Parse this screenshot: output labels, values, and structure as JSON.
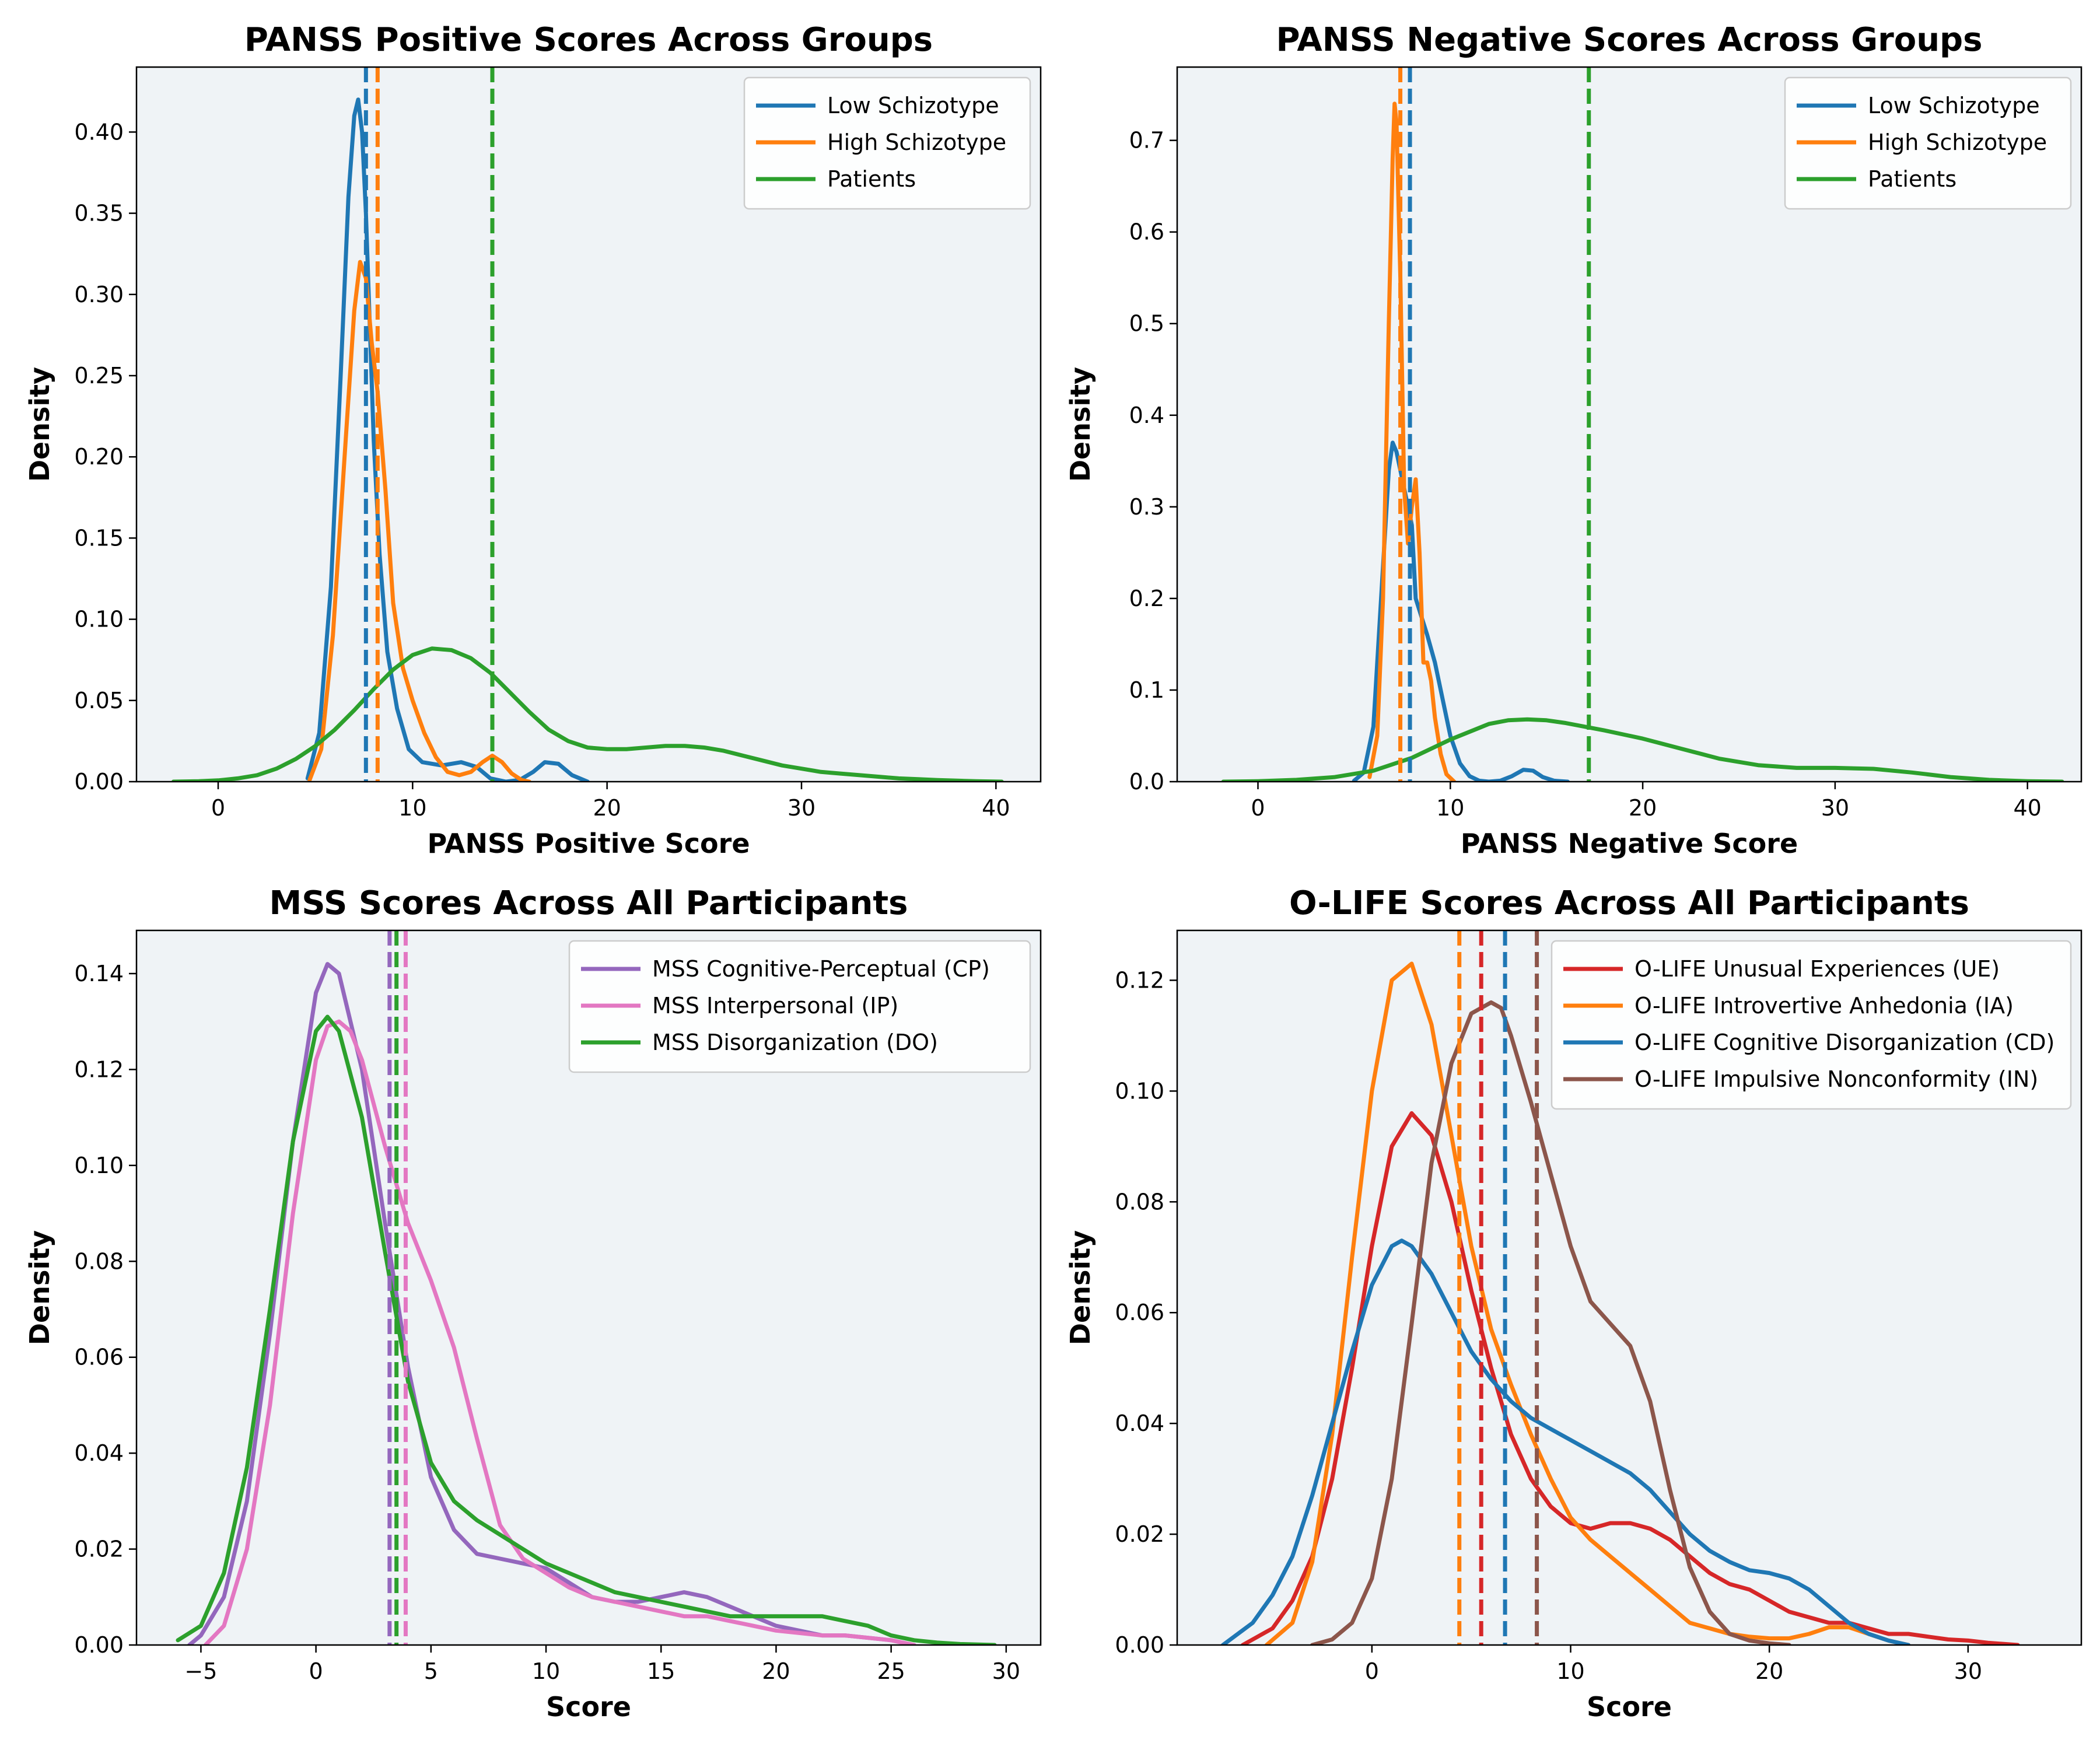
{
  "chart_data": [
    {
      "type": "line",
      "title": "PANSS Positive Scores Across Groups",
      "xlabel": "PANSS Positive Score",
      "ylabel": "Density",
      "xlim": [
        -4.2,
        42.3
      ],
      "ylim": [
        0,
        0.44
      ],
      "xticks": [
        0,
        10,
        20,
        30,
        40
      ],
      "yticks": [
        0.0,
        0.05,
        0.1,
        0.15,
        0.2,
        0.25,
        0.3,
        0.35,
        0.4
      ],
      "ytick_labels": [
        "0.00",
        "0.05",
        "0.10",
        "0.15",
        "0.20",
        "0.25",
        "0.30",
        "0.35",
        "0.40"
      ],
      "legend": "top-right",
      "series": [
        {
          "name": "Low Schizotype",
          "color": "#1f77b4",
          "mean": 7.6,
          "x": [
            4.6,
            5.2,
            5.8,
            6.3,
            6.7,
            7.0,
            7.2,
            7.4,
            7.6,
            7.8,
            8.0,
            8.3,
            8.7,
            9.2,
            9.8,
            10.5,
            11.5,
            12.5,
            13.3,
            14.0,
            14.8,
            15.5,
            16.2,
            16.8,
            17.5,
            18.2,
            19.0
          ],
          "y": [
            0.002,
            0.03,
            0.12,
            0.25,
            0.36,
            0.41,
            0.42,
            0.4,
            0.35,
            0.28,
            0.21,
            0.14,
            0.08,
            0.045,
            0.02,
            0.012,
            0.01,
            0.012,
            0.009,
            0.002,
            0.0,
            0.001,
            0.006,
            0.012,
            0.011,
            0.004,
            0.0
          ]
        },
        {
          "name": "High Schizotype",
          "color": "#ff7f0e",
          "mean": 8.2,
          "x": [
            4.7,
            5.3,
            5.9,
            6.5,
            7.0,
            7.3,
            7.6,
            7.9,
            8.2,
            8.6,
            9.0,
            9.5,
            10.0,
            10.6,
            11.2,
            11.8,
            12.4,
            13.0,
            13.6,
            14.1,
            14.6,
            15.1,
            15.6,
            16.0
          ],
          "y": [
            0.001,
            0.02,
            0.09,
            0.2,
            0.29,
            0.32,
            0.31,
            0.27,
            0.24,
            0.18,
            0.11,
            0.07,
            0.05,
            0.03,
            0.015,
            0.006,
            0.004,
            0.006,
            0.012,
            0.016,
            0.012,
            0.005,
            0.001,
            0.0
          ]
        },
        {
          "name": "Patients",
          "color": "#2ca02c",
          "mean": 14.1,
          "x": [
            -2.3,
            -1.0,
            0.0,
            1.0,
            2.0,
            3.0,
            4.0,
            5.0,
            6.0,
            7.0,
            8.0,
            9.0,
            10.0,
            11.0,
            12.0,
            13.0,
            14.0,
            15.0,
            16.0,
            17.0,
            18.0,
            19.0,
            20.0,
            21.0,
            22.0,
            23.0,
            24.0,
            25.0,
            26.0,
            27.0,
            28.0,
            29.0,
            30.0,
            31.0,
            32.0,
            33.0,
            34.0,
            35.0,
            36.0,
            37.0,
            38.0,
            39.0,
            40.3
          ],
          "y": [
            0.0,
            0.0003,
            0.0008,
            0.002,
            0.004,
            0.008,
            0.014,
            0.022,
            0.032,
            0.044,
            0.057,
            0.069,
            0.078,
            0.082,
            0.081,
            0.076,
            0.067,
            0.055,
            0.043,
            0.032,
            0.025,
            0.021,
            0.02,
            0.02,
            0.021,
            0.022,
            0.022,
            0.021,
            0.019,
            0.016,
            0.013,
            0.01,
            0.008,
            0.006,
            0.005,
            0.004,
            0.003,
            0.002,
            0.0015,
            0.001,
            0.0006,
            0.0003,
            0.0
          ]
        }
      ]
    },
    {
      "type": "line",
      "title": "PANSS Negative Scores Across Groups",
      "xlabel": "PANSS Negative Score",
      "ylabel": "Density",
      "xlim": [
        -4.2,
        42.8
      ],
      "ylim": [
        0,
        0.78
      ],
      "xticks": [
        0,
        10,
        20,
        30,
        40
      ],
      "yticks": [
        0.0,
        0.1,
        0.2,
        0.3,
        0.4,
        0.5,
        0.6,
        0.7
      ],
      "ytick_labels": [
        "0.0",
        "0.1",
        "0.2",
        "0.3",
        "0.4",
        "0.5",
        "0.6",
        "0.7"
      ],
      "legend": "top-right",
      "series": [
        {
          "name": "Low Schizotype",
          "color": "#1f77b4",
          "mean": 7.9,
          "x": [
            5.0,
            5.5,
            6.0,
            6.4,
            6.8,
            7.0,
            7.2,
            7.5,
            7.8,
            8.0,
            8.2,
            8.5,
            8.8,
            9.2,
            9.6,
            10.0,
            10.5,
            11.0,
            11.5,
            12.0,
            12.6,
            13.2,
            13.8,
            14.3,
            14.8,
            15.4,
            16.1
          ],
          "y": [
            0.001,
            0.01,
            0.06,
            0.2,
            0.34,
            0.37,
            0.36,
            0.33,
            0.3,
            0.28,
            0.2,
            0.18,
            0.16,
            0.13,
            0.09,
            0.05,
            0.02,
            0.006,
            0.001,
            0.0,
            0.001,
            0.006,
            0.013,
            0.012,
            0.005,
            0.001,
            0.0
          ]
        },
        {
          "name": "High Schizotype",
          "color": "#ff7f0e",
          "mean": 7.4,
          "x": [
            5.8,
            6.2,
            6.5,
            6.8,
            7.0,
            7.1,
            7.2,
            7.4,
            7.6,
            7.8,
            8.0,
            8.2,
            8.4,
            8.6,
            8.8,
            9.0,
            9.2,
            9.5,
            9.8,
            10.2
          ],
          "y": [
            0.005,
            0.05,
            0.2,
            0.5,
            0.68,
            0.74,
            0.72,
            0.55,
            0.32,
            0.26,
            0.3,
            0.33,
            0.25,
            0.13,
            0.13,
            0.11,
            0.07,
            0.03,
            0.008,
            0.0
          ]
        },
        {
          "name": "Patients",
          "color": "#2ca02c",
          "mean": 17.2,
          "x": [
            -1.8,
            0.0,
            2.0,
            4.0,
            6.0,
            8.0,
            10.0,
            12.0,
            13.0,
            14.0,
            15.0,
            16.0,
            17.0,
            18.0,
            20.0,
            22.0,
            24.0,
            26.0,
            28.0,
            30.0,
            32.0,
            34.0,
            36.0,
            38.0,
            40.0,
            41.8
          ],
          "y": [
            0.0,
            0.0005,
            0.002,
            0.005,
            0.012,
            0.026,
            0.046,
            0.063,
            0.067,
            0.068,
            0.067,
            0.064,
            0.06,
            0.056,
            0.047,
            0.036,
            0.025,
            0.018,
            0.015,
            0.015,
            0.014,
            0.01,
            0.005,
            0.002,
            0.0005,
            0.0
          ]
        }
      ]
    },
    {
      "type": "line",
      "title": "MSS Scores Across All Participants",
      "xlabel": "Score",
      "ylabel": "Density",
      "xlim": [
        -7.8,
        31.5
      ],
      "ylim": [
        0,
        0.149
      ],
      "xticks": [
        -5,
        0,
        5,
        10,
        15,
        20,
        25,
        30
      ],
      "xtick_labels": [
        "−5",
        "0",
        "5",
        "10",
        "15",
        "20",
        "25",
        "30"
      ],
      "yticks": [
        0.0,
        0.02,
        0.04,
        0.06,
        0.08,
        0.1,
        0.12,
        0.14
      ],
      "ytick_labels": [
        "0.00",
        "0.02",
        "0.04",
        "0.06",
        "0.08",
        "0.10",
        "0.12",
        "0.14"
      ],
      "legend": "top-right",
      "series": [
        {
          "name": "MSS Cognitive-Perceptual (CP)",
          "color": "#9467bd",
          "mean": 3.2,
          "x": [
            -5.5,
            -5.0,
            -4.0,
            -3.0,
            -2.0,
            -1.0,
            0.0,
            0.5,
            1.0,
            2.0,
            3.0,
            4.0,
            5.0,
            6.0,
            7.0,
            8.0,
            9.0,
            10.0,
            11.0,
            12.0,
            13.0,
            14.0,
            15.0,
            16.0,
            17.0,
            18.0,
            19.0,
            20.0,
            21.0,
            22.0,
            23.0,
            24.0,
            25.0,
            26.0
          ],
          "y": [
            0.0,
            0.002,
            0.01,
            0.03,
            0.065,
            0.105,
            0.136,
            0.142,
            0.14,
            0.12,
            0.088,
            0.058,
            0.035,
            0.024,
            0.019,
            0.018,
            0.017,
            0.016,
            0.013,
            0.01,
            0.009,
            0.009,
            0.01,
            0.011,
            0.01,
            0.008,
            0.006,
            0.004,
            0.003,
            0.002,
            0.002,
            0.0015,
            0.001,
            0.0
          ]
        },
        {
          "name": "MSS Interpersonal (IP)",
          "color": "#e377c2",
          "mean": 3.9,
          "x": [
            -4.8,
            -4.0,
            -3.0,
            -2.0,
            -1.0,
            0.0,
            0.5,
            1.0,
            1.5,
            2.0,
            3.0,
            4.0,
            5.0,
            6.0,
            7.0,
            8.0,
            9.0,
            10.0,
            11.0,
            12.0,
            13.0,
            14.0,
            15.0,
            16.0,
            17.0,
            18.0,
            19.0,
            20.0,
            21.0,
            22.0,
            23.0,
            24.0,
            25.0,
            26.0
          ],
          "y": [
            0.0,
            0.004,
            0.02,
            0.05,
            0.09,
            0.122,
            0.129,
            0.13,
            0.128,
            0.122,
            0.104,
            0.088,
            0.076,
            0.062,
            0.043,
            0.025,
            0.018,
            0.015,
            0.012,
            0.01,
            0.009,
            0.008,
            0.007,
            0.006,
            0.006,
            0.005,
            0.004,
            0.003,
            0.0025,
            0.002,
            0.002,
            0.0015,
            0.001,
            0.0
          ]
        },
        {
          "name": "MSS Disorganization (DO)",
          "color": "#2ca02c",
          "mean": 3.5,
          "x": [
            -6.0,
            -5.0,
            -4.0,
            -3.0,
            -2.0,
            -1.0,
            0.0,
            0.5,
            1.0,
            2.0,
            3.0,
            4.0,
            5.0,
            6.0,
            7.0,
            8.0,
            9.0,
            10.0,
            11.0,
            12.0,
            13.0,
            14.0,
            15.0,
            16.0,
            17.0,
            18.0,
            19.0,
            20.0,
            21.0,
            22.0,
            23.0,
            24.0,
            25.0,
            26.0,
            27.0,
            28.0,
            29.5
          ],
          "y": [
            0.001,
            0.004,
            0.015,
            0.037,
            0.07,
            0.105,
            0.128,
            0.131,
            0.128,
            0.11,
            0.082,
            0.055,
            0.038,
            0.03,
            0.026,
            0.023,
            0.02,
            0.017,
            0.015,
            0.013,
            0.011,
            0.01,
            0.009,
            0.008,
            0.007,
            0.006,
            0.006,
            0.006,
            0.006,
            0.006,
            0.005,
            0.004,
            0.002,
            0.001,
            0.0005,
            0.0002,
            0.0
          ]
        }
      ]
    },
    {
      "type": "line",
      "title": "O-LIFE Scores Across All Participants",
      "xlabel": "Score",
      "ylabel": "Density",
      "xlim": [
        -9.8,
        35.7
      ],
      "ylim": [
        0,
        0.129
      ],
      "xticks": [
        0,
        10,
        20,
        30
      ],
      "yticks": [
        0.0,
        0.02,
        0.04,
        0.06,
        0.08,
        0.1,
        0.12
      ],
      "ytick_labels": [
        "0.00",
        "0.02",
        "0.04",
        "0.06",
        "0.08",
        "0.10",
        "0.12"
      ],
      "legend": "top-right",
      "series": [
        {
          "name": "O-LIFE Unusual Experiences (UE)",
          "color": "#d62728",
          "mean": 5.5,
          "x": [
            -6.5,
            -5.0,
            -4.0,
            -3.0,
            -2.0,
            -1.0,
            0.0,
            1.0,
            2.0,
            3.0,
            4.0,
            5.0,
            6.0,
            7.0,
            8.0,
            9.0,
            10.0,
            11.0,
            12.0,
            13.0,
            14.0,
            15.0,
            16.0,
            17.0,
            18.0,
            19.0,
            20.0,
            21.0,
            22.0,
            23.0,
            24.0,
            25.0,
            26.0,
            27.0,
            28.0,
            29.0,
            30.0,
            31.0,
            32.5
          ],
          "y": [
            0.0,
            0.003,
            0.008,
            0.016,
            0.03,
            0.05,
            0.072,
            0.09,
            0.096,
            0.092,
            0.08,
            0.064,
            0.05,
            0.038,
            0.03,
            0.025,
            0.022,
            0.021,
            0.022,
            0.022,
            0.021,
            0.019,
            0.016,
            0.013,
            0.011,
            0.01,
            0.008,
            0.006,
            0.005,
            0.004,
            0.004,
            0.003,
            0.002,
            0.002,
            0.0015,
            0.001,
            0.0008,
            0.0004,
            0.0
          ]
        },
        {
          "name": "O-LIFE Introvertive Anhedonia (IA)",
          "color": "#ff7f0e",
          "mean": 4.4,
          "x": [
            -5.3,
            -4.0,
            -3.0,
            -2.0,
            -1.0,
            0.0,
            1.0,
            2.0,
            3.0,
            4.0,
            5.0,
            6.0,
            7.0,
            8.0,
            9.0,
            10.0,
            11.0,
            12.0,
            13.0,
            14.0,
            15.0,
            16.0,
            17.0,
            18.0,
            19.0,
            20.0,
            21.0,
            22.0,
            23.0,
            24.0,
            25.0,
            26.0,
            27.0
          ],
          "y": [
            0.0,
            0.004,
            0.015,
            0.038,
            0.07,
            0.1,
            0.12,
            0.123,
            0.112,
            0.092,
            0.072,
            0.057,
            0.047,
            0.038,
            0.03,
            0.023,
            0.019,
            0.016,
            0.013,
            0.01,
            0.007,
            0.004,
            0.003,
            0.002,
            0.0015,
            0.0012,
            0.0012,
            0.002,
            0.0032,
            0.0032,
            0.002,
            0.0008,
            0.0
          ]
        },
        {
          "name": "O-LIFE Cognitive Disorganization (CD)",
          "color": "#1f77b4",
          "mean": 6.7,
          "x": [
            -7.5,
            -6.0,
            -5.0,
            -4.0,
            -3.0,
            -2.0,
            -1.0,
            0.0,
            1.0,
            1.5,
            2.0,
            3.0,
            4.0,
            5.0,
            6.0,
            7.0,
            8.0,
            9.0,
            10.0,
            11.0,
            12.0,
            13.0,
            14.0,
            15.0,
            16.0,
            17.0,
            18.0,
            19.0,
            20.0,
            21.0,
            22.0,
            23.0,
            24.0,
            25.0,
            26.0,
            27.0
          ],
          "y": [
            0.0,
            0.004,
            0.009,
            0.016,
            0.027,
            0.04,
            0.053,
            0.065,
            0.072,
            0.073,
            0.072,
            0.067,
            0.06,
            0.053,
            0.048,
            0.044,
            0.041,
            0.039,
            0.037,
            0.035,
            0.033,
            0.031,
            0.028,
            0.024,
            0.02,
            0.017,
            0.015,
            0.0135,
            0.013,
            0.012,
            0.01,
            0.007,
            0.004,
            0.002,
            0.0008,
            0.0
          ]
        },
        {
          "name": "O-LIFE Impulsive Nonconformity (IN)",
          "color": "#8c564b",
          "mean": 8.3,
          "x": [
            -3.0,
            -2.0,
            -1.0,
            0.0,
            1.0,
            2.0,
            3.0,
            4.0,
            5.0,
            6.0,
            6.5,
            7.0,
            8.0,
            9.0,
            10.0,
            11.0,
            12.0,
            13.0,
            14.0,
            15.0,
            16.0,
            17.0,
            18.0,
            19.0,
            20.0,
            21.0
          ],
          "y": [
            0.0,
            0.001,
            0.004,
            0.012,
            0.03,
            0.058,
            0.087,
            0.105,
            0.114,
            0.116,
            0.115,
            0.11,
            0.098,
            0.085,
            0.072,
            0.062,
            0.058,
            0.054,
            0.044,
            0.028,
            0.014,
            0.006,
            0.002,
            0.0008,
            0.0003,
            0.0
          ]
        }
      ]
    }
  ]
}
